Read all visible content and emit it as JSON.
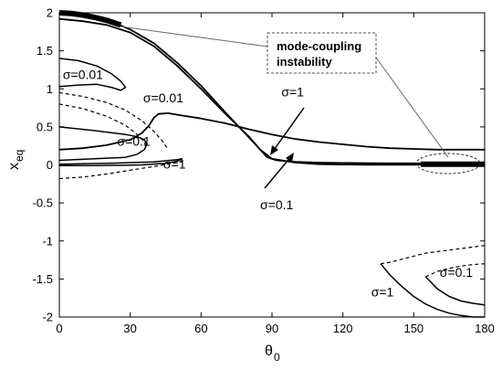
{
  "chart_data": {
    "type": "line",
    "xlabel": "θ",
    "xlabel_sub": "0",
    "ylabel": "x",
    "ylabel_sub": "eq",
    "xlim": [
      0,
      180
    ],
    "ylim": [
      -2,
      2
    ],
    "xticks": [
      0,
      30,
      60,
      90,
      120,
      150,
      180
    ],
    "yticks": [
      2,
      1.5,
      1,
      0.5,
      0,
      -0.5,
      -1,
      -1.5,
      -2
    ],
    "grid": false,
    "series": [
      {
        "style": "solid",
        "width": 1.8,
        "x": [
          0,
          10,
          20,
          30,
          40,
          50,
          60,
          70,
          76,
          80,
          85,
          90,
          100,
          110,
          120,
          130,
          140,
          150,
          160,
          170,
          180
        ],
        "y": [
          1.99,
          1.97,
          1.91,
          1.78,
          1.6,
          1.34,
          1.04,
          0.7,
          0.5,
          0.37,
          0.2,
          0.08,
          0.03,
          0.01,
          0.005,
          0.003,
          0.002,
          0.002,
          0.002,
          0.002,
          0.002
        ]
      },
      {
        "style": "solid",
        "width": 1.8,
        "x": [
          0,
          10,
          20,
          30,
          40,
          50,
          60,
          70,
          76,
          80,
          85,
          88,
          92,
          100,
          110,
          120,
          140,
          160,
          180
        ],
        "y": [
          1.92,
          1.89,
          1.84,
          1.74,
          1.56,
          1.3,
          1.0,
          0.68,
          0.5,
          0.38,
          0.2,
          0.1,
          0.06,
          0.04,
          0.03,
          0.025,
          0.02,
          0.02,
          0.02
        ]
      },
      {
        "style": "solid",
        "width": 1.8,
        "x": [
          0,
          10,
          20,
          30,
          35,
          38,
          40,
          42,
          46,
          50,
          60,
          70,
          80,
          90,
          100,
          110,
          120,
          130,
          140,
          150,
          160,
          170,
          180
        ],
        "y": [
          0.2,
          0.22,
          0.26,
          0.33,
          0.42,
          0.52,
          0.62,
          0.67,
          0.68,
          0.66,
          0.61,
          0.55,
          0.47,
          0.4,
          0.34,
          0.3,
          0.27,
          0.24,
          0.22,
          0.21,
          0.2,
          0.2,
          0.2
        ]
      },
      {
        "style": "solid",
        "width": 1.5,
        "x": [
          0,
          15,
          28,
          33,
          36,
          37,
          36,
          33,
          28,
          15,
          0
        ],
        "y": [
          0.06,
          0.08,
          0.1,
          0.14,
          0.2,
          0.27,
          0.33,
          0.37,
          0.4,
          0.45,
          0.5
        ]
      },
      {
        "style": "solid",
        "width": 1.5,
        "x": [
          0,
          15,
          35,
          45,
          50,
          52,
          50,
          40,
          20,
          0
        ],
        "y": [
          -0.01,
          -0.01,
          0.0,
          0.02,
          0.05,
          0.08,
          0.07,
          0.04,
          0.02,
          0.01
        ]
      },
      {
        "style": "solid",
        "width": 1.5,
        "x": [
          0,
          8,
          16,
          22,
          26,
          28,
          26,
          22,
          16,
          8,
          0
        ],
        "y": [
          1.4,
          1.37,
          1.3,
          1.2,
          1.1,
          1.02,
          0.98,
          1.02,
          1.06,
          1.05,
          1.03
        ]
      },
      {
        "style": "dashed",
        "width": 1.2,
        "x": [
          0,
          10,
          20,
          28,
          35,
          40,
          44,
          46
        ],
        "y": [
          0.95,
          0.9,
          0.82,
          0.72,
          0.58,
          0.44,
          0.3,
          0.2
        ]
      },
      {
        "style": "dashed",
        "width": 1.2,
        "x": [
          0,
          10,
          20,
          28,
          33,
          36,
          37
        ],
        "y": [
          0.8,
          0.74,
          0.64,
          0.52,
          0.4,
          0.3,
          0.22
        ]
      },
      {
        "style": "dashed",
        "width": 1.2,
        "x": [
          0,
          10,
          20,
          30,
          40,
          48,
          53
        ],
        "y": [
          -0.18,
          -0.16,
          -0.12,
          -0.07,
          -0.02,
          0.02,
          0.05
        ]
      },
      {
        "style": "solid",
        "width": 1.5,
        "x": [
          136,
          140,
          145,
          150,
          155,
          160,
          165,
          170,
          175,
          180
        ],
        "y": [
          -1.3,
          -1.45,
          -1.6,
          -1.73,
          -1.83,
          -1.9,
          -1.95,
          -1.98,
          -2.0,
          -2.0
        ]
      },
      {
        "style": "dashed",
        "width": 1.2,
        "x": [
          136,
          140,
          145,
          150,
          155,
          160,
          165,
          170,
          175,
          180
        ],
        "y": [
          -1.3,
          -1.28,
          -1.24,
          -1.2,
          -1.16,
          -1.14,
          -1.12,
          -1.1,
          -1.08,
          -1.06
        ]
      },
      {
        "style": "solid",
        "width": 1.5,
        "x": [
          155,
          160,
          165,
          170,
          175,
          180
        ],
        "y": [
          -1.47,
          -1.63,
          -1.73,
          -1.79,
          -1.82,
          -1.84
        ]
      },
      {
        "style": "dashed",
        "width": 1.2,
        "x": [
          155,
          160,
          165,
          170,
          175,
          180
        ],
        "y": [
          -1.47,
          -1.4,
          -1.36,
          -1.33,
          -1.31,
          -1.3
        ]
      }
    ],
    "thick_segments": [
      {
        "x": [
          0,
          5,
          10,
          15,
          20,
          26
        ],
        "y": [
          2.0,
          1.99,
          1.97,
          1.94,
          1.9,
          1.84
        ]
      },
      {
        "x": [
          153,
          160,
          170,
          180
        ],
        "y": [
          0.01,
          0.01,
          0.01,
          0.01
        ]
      }
    ],
    "annotations": [
      {
        "text": "σ=0.01",
        "x": 1.5,
        "y": 1.13
      },
      {
        "text": "σ=0.01",
        "x": 35.5,
        "y": 0.82
      },
      {
        "text": "σ=0.1",
        "x": 24.5,
        "y": 0.25
      },
      {
        "text": "σ=1",
        "x": 44,
        "y": -0.05
      },
      {
        "text": "σ=1",
        "x": 94,
        "y": 0.9
      },
      {
        "text": "σ=0.1",
        "x": 85,
        "y": -0.58
      },
      {
        "text": "σ=1",
        "x": 132,
        "y": -1.73
      },
      {
        "text": "σ=0.1",
        "x": 161,
        "y": -1.47
      }
    ],
    "callout": {
      "line1": "mode-coupling",
      "line2": "instability"
    }
  }
}
